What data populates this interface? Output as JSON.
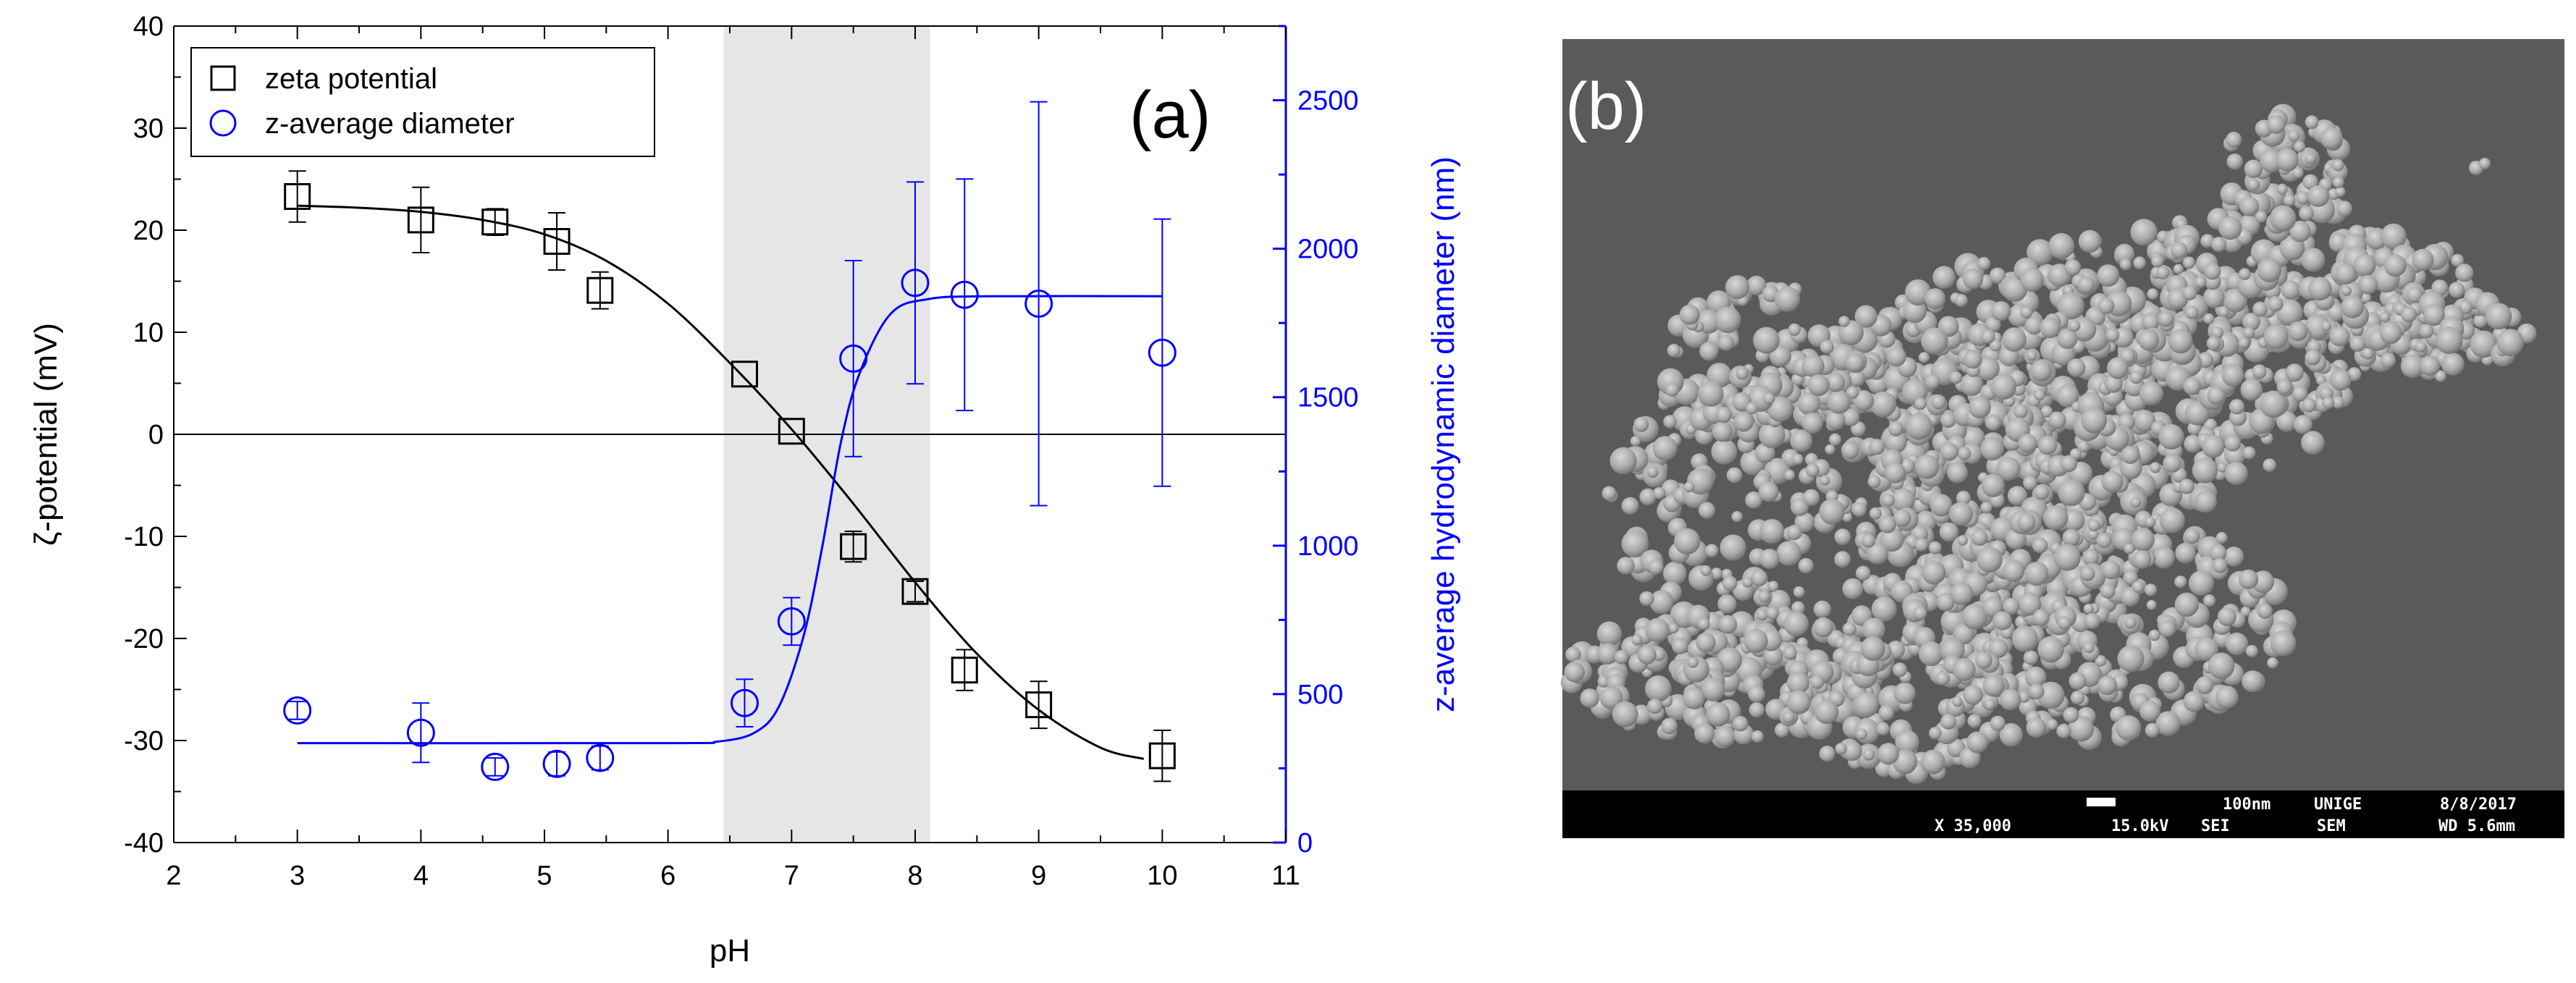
{
  "chart_data": {
    "type": "scatter",
    "panel_label": "(a)",
    "xlabel": "pH",
    "ylabel_left": "ζ-potential (mV)",
    "ylabel_right": "z-average hydrodynamic diameter (nm)",
    "xlim": [
      2,
      11
    ],
    "ylim_left": [
      -40,
      40
    ],
    "ylim_right": [
      0,
      2750
    ],
    "x_ticks": [
      "2",
      "3",
      "4",
      "5",
      "6",
      "7",
      "8",
      "9",
      "10",
      "11"
    ],
    "y_left_ticks": [
      "-40",
      "-30",
      "-20",
      "-10",
      "0",
      "10",
      "20",
      "30",
      "40"
    ],
    "y_right_ticks": [
      "0",
      "500",
      "1000",
      "1500",
      "2000",
      "2500"
    ],
    "shaded_region_x": [
      6.45,
      8.12
    ],
    "zero_line": 0,
    "legend": {
      "position": "top-left",
      "entries": [
        {
          "label": "zeta potential",
          "marker": "square",
          "color": "#000000"
        },
        {
          "label": "z-average diameter",
          "marker": "circle",
          "color": "#0000ff"
        }
      ]
    },
    "series": [
      {
        "name": "zeta potential",
        "axis": "left",
        "color": "#000000",
        "marker": "square",
        "points": [
          {
            "x": 3.0,
            "y": 23.3,
            "err": 2.5
          },
          {
            "x": 4.0,
            "y": 21.0,
            "err": 3.2
          },
          {
            "x": 4.6,
            "y": 20.8,
            "err": 1.3
          },
          {
            "x": 5.1,
            "y": 18.9,
            "err": 2.8
          },
          {
            "x": 5.45,
            "y": 14.1,
            "err": 1.8
          },
          {
            "x": 6.62,
            "y": 5.9,
            "err": 0
          },
          {
            "x": 7.0,
            "y": 0.3,
            "err": 0
          },
          {
            "x": 7.5,
            "y": -11.0,
            "err": 1.5
          },
          {
            "x": 8.0,
            "y": -15.4,
            "err": 1.0
          },
          {
            "x": 8.4,
            "y": -23.1,
            "err": 2.0
          },
          {
            "x": 9.0,
            "y": -26.5,
            "err": 2.3
          },
          {
            "x": 10.0,
            "y": -31.5,
            "err": 2.5
          }
        ],
        "fit": [
          {
            "x": 3.0,
            "y": 22.4
          },
          {
            "x": 3.5,
            "y": 22.2
          },
          {
            "x": 4.0,
            "y": 21.8
          },
          {
            "x": 4.5,
            "y": 21.0
          },
          {
            "x": 5.0,
            "y": 19.6
          },
          {
            "x": 5.5,
            "y": 17.0
          },
          {
            "x": 6.0,
            "y": 12.8
          },
          {
            "x": 6.5,
            "y": 7.0
          },
          {
            "x": 7.0,
            "y": 0.5
          },
          {
            "x": 7.5,
            "y": -6.8
          },
          {
            "x": 8.0,
            "y": -14.5
          },
          {
            "x": 8.5,
            "y": -21.5
          },
          {
            "x": 9.0,
            "y": -27.0
          },
          {
            "x": 9.5,
            "y": -30.7
          },
          {
            "x": 9.85,
            "y": -31.8
          }
        ]
      },
      {
        "name": "z-average diameter",
        "axis": "right",
        "color": "#0000ff",
        "marker": "circle",
        "points": [
          {
            "x": 3.0,
            "y": 445,
            "err": 30
          },
          {
            "x": 4.0,
            "y": 370,
            "err": 100
          },
          {
            "x": 4.6,
            "y": 255,
            "err": 30
          },
          {
            "x": 5.1,
            "y": 265,
            "err": 40
          },
          {
            "x": 5.45,
            "y": 285,
            "err": 40
          },
          {
            "x": 6.62,
            "y": 470,
            "err": 80
          },
          {
            "x": 7.0,
            "y": 745,
            "err": 80
          },
          {
            "x": 7.5,
            "y": 1630,
            "err": 330
          },
          {
            "x": 8.0,
            "y": 1885,
            "err": 340
          },
          {
            "x": 8.4,
            "y": 1845,
            "err": 390
          },
          {
            "x": 9.0,
            "y": 1815,
            "err": 680
          },
          {
            "x": 10.0,
            "y": 1650,
            "err": 450
          }
        ],
        "fit": [
          {
            "x": 3.0,
            "y": 335
          },
          {
            "x": 6.0,
            "y": 335
          },
          {
            "x": 6.4,
            "y": 340
          },
          {
            "x": 6.7,
            "y": 370
          },
          {
            "x": 6.9,
            "y": 460
          },
          {
            "x": 7.1,
            "y": 700
          },
          {
            "x": 7.25,
            "y": 1000
          },
          {
            "x": 7.4,
            "y": 1350
          },
          {
            "x": 7.55,
            "y": 1580
          },
          {
            "x": 7.8,
            "y": 1780
          },
          {
            "x": 8.1,
            "y": 1830
          },
          {
            "x": 8.6,
            "y": 1840
          },
          {
            "x": 10.0,
            "y": 1840
          }
        ]
      }
    ]
  },
  "sem_image": {
    "panel_label": "(b)",
    "footer": {
      "scale_label": "100nm",
      "institution": "UNIGE",
      "date": "8/8/2017",
      "magnification": "X 35,000",
      "voltage": "15.0kV",
      "detector": "SEI",
      "mode": "SEM",
      "working_distance": "WD 5.6mm"
    }
  },
  "colors": {
    "left_axis": "#000000",
    "right_axis": "#0000ff",
    "shade": "#e6e6e6",
    "sem_background": "#5a5a5a",
    "sem_footer": "#000000"
  }
}
